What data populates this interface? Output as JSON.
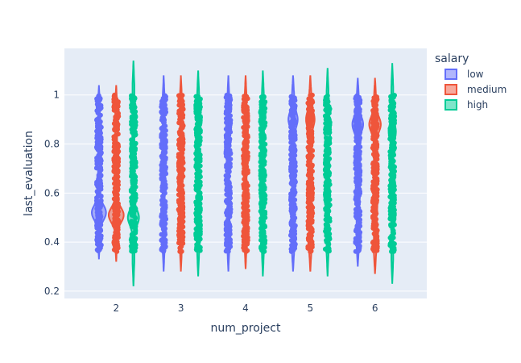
{
  "chart_data": {
    "type": "violin",
    "title": "",
    "xlabel": "num_project",
    "ylabel": "last_evaluation",
    "categories": [
      "2",
      "3",
      "4",
      "5",
      "6"
    ],
    "xlim": [
      1.2,
      6.8
    ],
    "ylim": [
      0.17,
      1.19
    ],
    "yticks": [
      0.2,
      0.4,
      0.6,
      0.8,
      1
    ],
    "ytick_labels": [
      "0.2",
      "0.4",
      "0.6",
      "0.8",
      "1"
    ],
    "points": "all",
    "plot_background": "#e5ecf6",
    "grid": true,
    "legend": {
      "title": "salary",
      "position": "top-right",
      "items": [
        "low",
        "medium",
        "high"
      ]
    },
    "series": [
      {
        "name": "low",
        "color": "#636efa",
        "violins": [
          {
            "category": "2",
            "min": 0.33,
            "max": 1.04,
            "points_range": [
              0.36,
              1.0
            ],
            "peaks": [
              {
                "y": 0.52,
                "w": 0.8
              }
            ],
            "base": 0.12
          },
          {
            "category": "3",
            "min": 0.28,
            "max": 1.08,
            "points_range": [
              0.36,
              1.0
            ],
            "peaks": [
              {
                "y": 0.65,
                "w": 0.1
              }
            ],
            "base": 0.12
          },
          {
            "category": "4",
            "min": 0.28,
            "max": 1.08,
            "points_range": [
              0.36,
              1.0
            ],
            "peaks": [
              {
                "y": 0.75,
                "w": 0.1
              }
            ],
            "base": 0.12
          },
          {
            "category": "5",
            "min": 0.28,
            "max": 1.08,
            "points_range": [
              0.36,
              1.0
            ],
            "peaks": [
              {
                "y": 0.9,
                "w": 0.45
              }
            ],
            "base": 0.15
          },
          {
            "category": "6",
            "min": 0.3,
            "max": 1.07,
            "points_range": [
              0.36,
              1.0
            ],
            "peaks": [
              {
                "y": 0.88,
                "w": 0.55
              },
              {
                "y": 0.6,
                "w": 0.15
              }
            ],
            "base": 0.15
          }
        ]
      },
      {
        "name": "medium",
        "color": "#ef553b",
        "violins": [
          {
            "category": "2",
            "min": 0.32,
            "max": 1.04,
            "points_range": [
              0.36,
              1.0
            ],
            "peaks": [
              {
                "y": 0.51,
                "w": 0.85
              }
            ],
            "base": 0.12
          },
          {
            "category": "3",
            "min": 0.28,
            "max": 1.08,
            "points_range": [
              0.36,
              1.0
            ],
            "peaks": [
              {
                "y": 0.65,
                "w": 0.1
              }
            ],
            "base": 0.12
          },
          {
            "category": "4",
            "min": 0.29,
            "max": 1.08,
            "points_range": [
              0.36,
              1.0
            ],
            "peaks": [
              {
                "y": 0.75,
                "w": 0.1
              }
            ],
            "base": 0.12
          },
          {
            "category": "5",
            "min": 0.28,
            "max": 1.08,
            "points_range": [
              0.36,
              1.0
            ],
            "peaks": [
              {
                "y": 0.9,
                "w": 0.4
              }
            ],
            "base": 0.15
          },
          {
            "category": "6",
            "min": 0.27,
            "max": 1.07,
            "points_range": [
              0.36,
              1.0
            ],
            "peaks": [
              {
                "y": 0.88,
                "w": 0.6
              },
              {
                "y": 0.55,
                "w": 0.15
              }
            ],
            "base": 0.15
          }
        ]
      },
      {
        "name": "high",
        "color": "#00cc96",
        "violins": [
          {
            "category": "2",
            "min": 0.22,
            "max": 1.14,
            "points_range": [
              0.36,
              1.0
            ],
            "peaks": [
              {
                "y": 0.5,
                "w": 0.6
              }
            ],
            "base": 0.12
          },
          {
            "category": "3",
            "min": 0.26,
            "max": 1.1,
            "points_range": [
              0.36,
              1.0
            ],
            "peaks": [
              {
                "y": 0.7,
                "w": 0.1
              }
            ],
            "base": 0.12
          },
          {
            "category": "4",
            "min": 0.26,
            "max": 1.1,
            "points_range": [
              0.36,
              1.0
            ],
            "peaks": [
              {
                "y": 0.8,
                "w": 0.1
              }
            ],
            "base": 0.12
          },
          {
            "category": "5",
            "min": 0.26,
            "max": 1.11,
            "points_range": [
              0.36,
              1.0
            ],
            "peaks": [
              {
                "y": 0.85,
                "w": 0.25
              },
              {
                "y": 0.6,
                "w": 0.2
              }
            ],
            "base": 0.12
          },
          {
            "category": "6",
            "min": 0.23,
            "max": 1.13,
            "points_range": [
              0.36,
              1.0
            ],
            "peaks": [
              {
                "y": 0.85,
                "w": 0.35
              }
            ],
            "base": 0.12
          }
        ]
      }
    ]
  }
}
